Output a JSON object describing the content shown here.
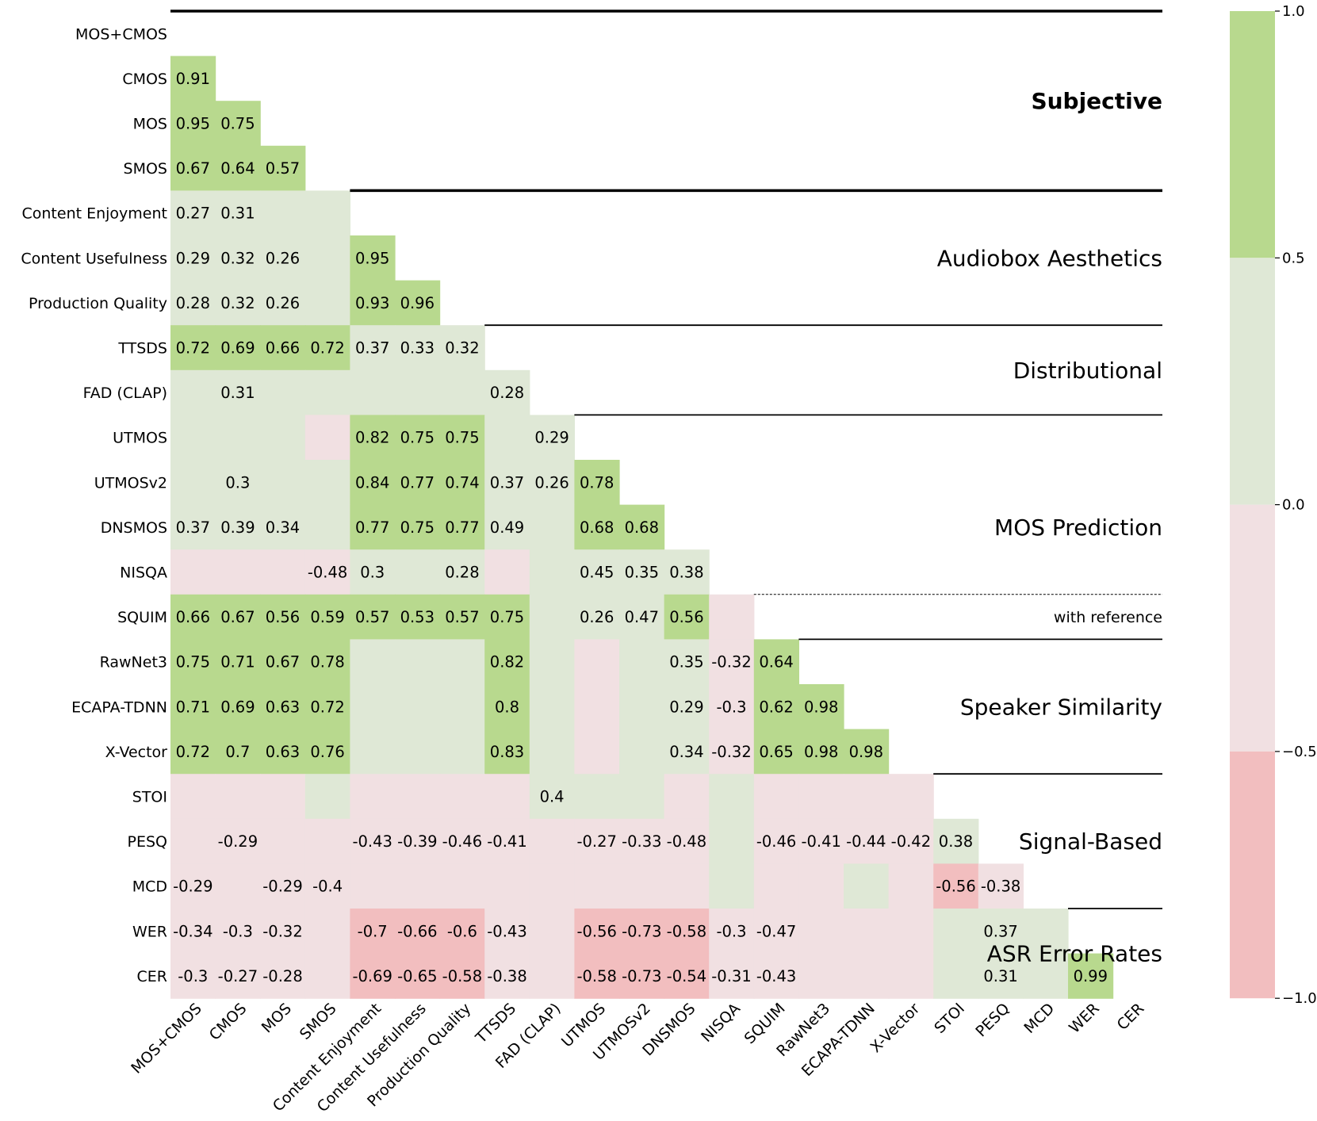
{
  "chart_data": {
    "type": "heatmap",
    "variant": "lower-triangle-correlation",
    "labels": [
      "MOS+CMOS",
      "CMOS",
      "MOS",
      "SMOS",
      "Content Enjoyment",
      "Content Usefulness",
      "Production Quality",
      "TTSDS",
      "FAD (CLAP)",
      "UTMOS",
      "UTMOSv2",
      "DNSMOS",
      "NISQA",
      "SQUIM",
      "RawNet3",
      "ECAPA-TDNN",
      "X-Vector",
      "STOI",
      "PESQ",
      "MCD",
      "WER",
      "CER"
    ],
    "matrix": [
      [],
      [
        0.91
      ],
      [
        0.95,
        0.75
      ],
      [
        0.67,
        0.64,
        0.57
      ],
      [
        0.27,
        0.31,
        0.2,
        0.1
      ],
      [
        0.29,
        0.32,
        0.26,
        0.1,
        0.95
      ],
      [
        0.28,
        0.32,
        0.26,
        0.1,
        0.93,
        0.96
      ],
      [
        0.72,
        0.69,
        0.66,
        0.72,
        0.37,
        0.33,
        0.32
      ],
      [
        0.1,
        0.31,
        0.1,
        0.1,
        0.1,
        0.1,
        0.1,
        0.28
      ],
      [
        0.1,
        0.1,
        0.1,
        -0.1,
        0.82,
        0.75,
        0.75,
        0.1,
        0.29
      ],
      [
        0.1,
        0.3,
        0.1,
        0.1,
        0.84,
        0.77,
        0.74,
        0.37,
        0.26,
        0.78
      ],
      [
        0.37,
        0.39,
        0.34,
        0.1,
        0.77,
        0.75,
        0.77,
        0.49,
        0.1,
        0.68,
        0.68
      ],
      [
        -0.1,
        -0.1,
        -0.1,
        -0.48,
        0.3,
        0.1,
        0.28,
        -0.1,
        0.1,
        0.45,
        0.35,
        0.38
      ],
      [
        0.66,
        0.67,
        0.56,
        0.59,
        0.57,
        0.53,
        0.57,
        0.75,
        0.1,
        0.26,
        0.47,
        0.56,
        -0.1
      ],
      [
        0.75,
        0.71,
        0.67,
        0.78,
        0.1,
        0.1,
        0.1,
        0.82,
        0.1,
        -0.1,
        0.1,
        0.35,
        -0.32,
        0.64
      ],
      [
        0.71,
        0.69,
        0.63,
        0.72,
        0.1,
        0.1,
        0.1,
        0.8,
        0.1,
        -0.1,
        0.1,
        0.29,
        -0.3,
        0.62,
        0.98
      ],
      [
        0.72,
        0.7,
        0.63,
        0.76,
        0.1,
        0.1,
        0.1,
        0.83,
        0.1,
        -0.1,
        0.1,
        0.34,
        -0.32,
        0.65,
        0.98,
        0.98
      ],
      [
        -0.1,
        -0.1,
        -0.1,
        0.1,
        -0.1,
        -0.1,
        -0.1,
        -0.1,
        0.4,
        0.1,
        0.1,
        -0.1,
        0.1,
        -0.1,
        -0.1,
        -0.1,
        -0.1
      ],
      [
        -0.1,
        -0.29,
        -0.1,
        -0.1,
        -0.43,
        -0.39,
        -0.46,
        -0.41,
        -0.1,
        -0.27,
        -0.33,
        -0.48,
        0.1,
        -0.46,
        -0.41,
        -0.44,
        -0.42,
        0.38
      ],
      [
        -0.29,
        -0.1,
        -0.29,
        -0.4,
        -0.1,
        -0.1,
        -0.1,
        -0.1,
        -0.1,
        -0.1,
        -0.1,
        -0.1,
        0.1,
        -0.1,
        -0.1,
        0.1,
        -0.1,
        -0.56,
        -0.38
      ],
      [
        -0.34,
        -0.3,
        -0.32,
        -0.1,
        -0.7,
        -0.66,
        -0.6,
        -0.43,
        -0.1,
        -0.56,
        -0.73,
        -0.58,
        -0.3,
        -0.47,
        -0.1,
        -0.1,
        -0.1,
        0.1,
        0.37,
        0.1
      ],
      [
        -0.3,
        -0.27,
        -0.28,
        -0.1,
        -0.69,
        -0.65,
        -0.58,
        -0.38,
        -0.1,
        -0.58,
        -0.73,
        -0.54,
        -0.31,
        -0.43,
        -0.1,
        -0.1,
        -0.1,
        0.1,
        0.31,
        0.1,
        0.99
      ]
    ],
    "annotations": [
      [],
      [
        "0.91"
      ],
      [
        "0.95",
        "0.75"
      ],
      [
        "0.67",
        "0.64",
        "0.57"
      ],
      [
        "0.27",
        "0.31",
        "",
        ""
      ],
      [
        "0.29",
        "0.32",
        "0.26",
        "",
        "0.95"
      ],
      [
        "0.28",
        "0.32",
        "0.26",
        "",
        "0.93",
        "0.96"
      ],
      [
        "0.72",
        "0.69",
        "0.66",
        "0.72",
        "0.37",
        "0.33",
        "0.32"
      ],
      [
        "",
        "0.31",
        "",
        "",
        "",
        "",
        "",
        "0.28"
      ],
      [
        "",
        "",
        "",
        "",
        "0.82",
        "0.75",
        "0.75",
        "",
        "0.29"
      ],
      [
        "",
        "0.3",
        "",
        "",
        "0.84",
        "0.77",
        "0.74",
        "0.37",
        "0.26",
        "0.78"
      ],
      [
        "0.37",
        "0.39",
        "0.34",
        "",
        "0.77",
        "0.75",
        "0.77",
        "0.49",
        "",
        "0.68",
        "0.68"
      ],
      [
        "",
        "",
        "",
        "-0.48",
        "0.3",
        "",
        "0.28",
        "",
        "",
        "0.45",
        "0.35",
        "0.38"
      ],
      [
        "0.66",
        "0.67",
        "0.56",
        "0.59",
        "0.57",
        "0.53",
        "0.57",
        "0.75",
        "",
        "0.26",
        "0.47",
        "0.56",
        ""
      ],
      [
        "0.75",
        "0.71",
        "0.67",
        "0.78",
        "",
        "",
        "",
        "0.82",
        "",
        "",
        "",
        "0.35",
        "-0.32",
        "0.64"
      ],
      [
        "0.71",
        "0.69",
        "0.63",
        "0.72",
        "",
        "",
        "",
        "0.8",
        "",
        "",
        "",
        "0.29",
        "-0.3",
        "0.62",
        "0.98"
      ],
      [
        "0.72",
        "0.7",
        "0.63",
        "0.76",
        "",
        "",
        "",
        "0.83",
        "",
        "",
        "",
        "0.34",
        "-0.32",
        "0.65",
        "0.98",
        "0.98"
      ],
      [
        "",
        "",
        "",
        "",
        "",
        "",
        "",
        "",
        "0.4",
        "",
        "",
        "",
        "",
        "",
        "",
        "",
        ""
      ],
      [
        "",
        "-0.29",
        "",
        "",
        "-0.43",
        "-0.39",
        "-0.46",
        "-0.41",
        "",
        "-0.27",
        "-0.33",
        "-0.48",
        "",
        "-0.46",
        "-0.41",
        "-0.44",
        "-0.42",
        "0.38"
      ],
      [
        "-0.29",
        "",
        "-0.29",
        "-0.4",
        "",
        "",
        "",
        "",
        "",
        "",
        "",
        "",
        "",
        "",
        "",
        "",
        "",
        "-0.56",
        "-0.38"
      ],
      [
        "-0.34",
        "-0.3",
        "-0.32",
        "",
        "-0.7",
        "-0.66",
        "-0.6",
        "-0.43",
        "",
        "-0.56",
        "-0.73",
        "-0.58",
        "-0.3",
        "-0.47",
        "",
        "",
        "",
        "",
        "0.37",
        ""
      ],
      [
        "-0.3",
        "-0.27",
        "-0.28",
        "",
        "-0.69",
        "-0.65",
        "-0.58",
        "-0.38",
        "",
        "-0.58",
        "-0.73",
        "-0.54",
        "-0.31",
        "-0.43",
        "",
        "",
        "",
        "",
        "0.31",
        "",
        "0.99"
      ]
    ],
    "groups": [
      {
        "name": "Subjective",
        "start": 0,
        "end": 3,
        "bold": true
      },
      {
        "name": "Audiobox Aesthetics",
        "start": 4,
        "end": 6
      },
      {
        "name": "Distributional",
        "start": 7,
        "end": 8
      },
      {
        "name": "MOS Prediction",
        "start": 9,
        "end": 13,
        "note": "with reference",
        "note_row": 13
      },
      {
        "name": "Speaker Similarity",
        "start": 14,
        "end": 16
      },
      {
        "name": "Signal-Based",
        "start": 17,
        "end": 19
      },
      {
        "name": "ASR Error Rates",
        "start": 20,
        "end": 21
      }
    ],
    "colorbar": {
      "vmin": -1.0,
      "vmax": 1.0,
      "ticks": [
        "1.0",
        "0.5",
        "0.0",
        "−0.5",
        "−1.0"
      ],
      "bins": [
        {
          "from": 0.5,
          "to": 1.0,
          "color": "#b8d98e"
        },
        {
          "from": 0.0,
          "to": 0.5,
          "color": "#dfe8d6"
        },
        {
          "from": -0.5,
          "to": 0.0,
          "color": "#f1e0e2"
        },
        {
          "from": -1.0,
          "to": -0.5,
          "color": "#f2bebf"
        }
      ]
    }
  }
}
